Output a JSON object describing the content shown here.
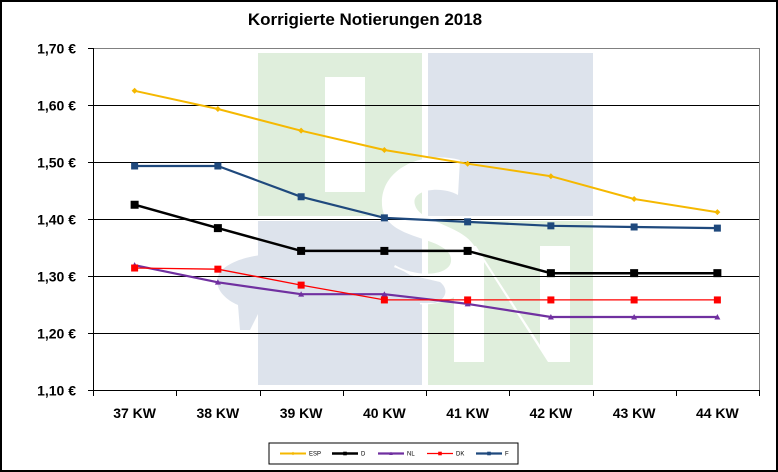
{
  "chart_data": {
    "type": "line",
    "title": "Korrigierte Notierungen 2018",
    "xlabel": "",
    "ylabel": "",
    "categories": [
      "37 KW",
      "38 KW",
      "39 KW",
      "40 KW",
      "41 KW",
      "42 KW",
      "43 KW",
      "44 KW"
    ],
    "ylim": [
      1.1,
      1.7
    ],
    "yticks": [
      1.1,
      1.2,
      1.3,
      1.4,
      1.5,
      1.6,
      1.7
    ],
    "ytick_labels": [
      "1,10 €",
      "1,20 €",
      "1,30 €",
      "1,40 €",
      "1,50 €",
      "1,60 €",
      "1,70 €"
    ],
    "grid": "horizontal",
    "legend_position": "bottom",
    "series": [
      {
        "name": "ESP",
        "color": "#F5B800",
        "marker": "diamond",
        "values": [
          1.625,
          1.593,
          1.555,
          1.521,
          1.497,
          1.475,
          1.435,
          1.412
        ]
      },
      {
        "name": "D",
        "color": "#000000",
        "marker": "square",
        "values": [
          1.425,
          1.384,
          1.344,
          1.344,
          1.344,
          1.305,
          1.305,
          1.305
        ]
      },
      {
        "name": "NL",
        "color": "#7030A0",
        "marker": "triangle",
        "values": [
          1.319,
          1.289,
          1.268,
          1.268,
          1.251,
          1.228,
          1.228,
          1.228
        ]
      },
      {
        "name": "DK",
        "color": "#FF0000",
        "marker": "square",
        "values": [
          1.314,
          1.312,
          1.284,
          1.258,
          1.258,
          1.258,
          1.258,
          1.258
        ]
      },
      {
        "name": "F",
        "color": "#1F497D",
        "marker": "square",
        "values": [
          1.493,
          1.493,
          1.439,
          1.402,
          1.395,
          1.388,
          1.386,
          1.384
        ]
      }
    ]
  },
  "watermark": {
    "letters": [
      "I",
      "S",
      "N"
    ],
    "colors": {
      "green": "#DFEEDC",
      "blue": "#DDE3EC",
      "pig": "#DDE3EC"
    }
  }
}
